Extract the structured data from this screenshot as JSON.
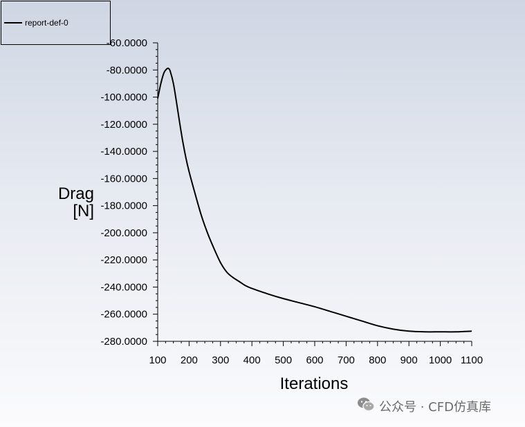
{
  "chart_data": {
    "type": "line",
    "title": "",
    "xlabel": "Iterations",
    "ylabel_lines": [
      "Drag",
      "[N]"
    ],
    "xlim": [
      100,
      1100
    ],
    "ylim": [
      -280,
      -60
    ],
    "x_ticks": [
      100,
      200,
      300,
      400,
      500,
      600,
      700,
      800,
      900,
      1000,
      1100
    ],
    "y_ticks": [
      -60,
      -80,
      -100,
      -120,
      -140,
      -160,
      -180,
      -200,
      -220,
      -240,
      -260,
      -280
    ],
    "y_tick_labels": [
      "-60.0000",
      "-80.0000",
      "-100.0000",
      "-120.0000",
      "-140.0000",
      "-160.0000",
      "-180.0000",
      "-200.0000",
      "-220.0000",
      "-240.0000",
      "-260.0000",
      "-280.0000"
    ],
    "legend": {
      "placement": "top-left"
    },
    "series": [
      {
        "name": "report-def-0",
        "color": "#000000",
        "x": [
          100,
          110,
          120,
          130,
          135,
          140,
          150,
          160,
          170,
          180,
          190,
          200,
          220,
          240,
          260,
          280,
          300,
          320,
          340,
          360,
          380,
          400,
          450,
          500,
          550,
          600,
          650,
          700,
          750,
          800,
          850,
          900,
          950,
          1000,
          1050,
          1100
        ],
        "y": [
          -101,
          -90,
          -82,
          -79,
          -79,
          -81,
          -90,
          -104,
          -119,
          -133,
          -145,
          -155,
          -172,
          -188,
          -201,
          -212,
          -222,
          -229,
          -233,
          -236,
          -239,
          -241,
          -245,
          -248.5,
          -251.5,
          -254.5,
          -258,
          -261.5,
          -265,
          -268.5,
          -271,
          -272.5,
          -273,
          -273,
          -273,
          -272.5
        ]
      }
    ]
  },
  "watermark": {
    "text": "公众号 · CFD仿真库",
    "icon": "wechat-icon"
  }
}
